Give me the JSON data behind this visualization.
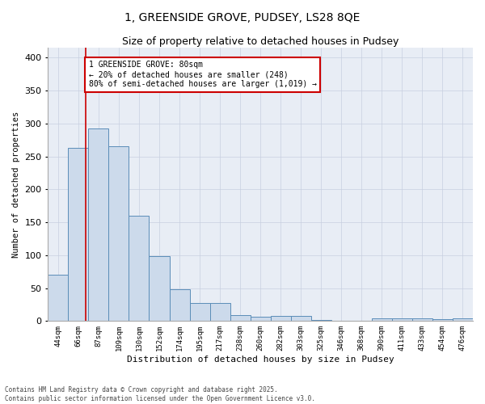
{
  "title1": "1, GREENSIDE GROVE, PUDSEY, LS28 8QE",
  "title2": "Size of property relative to detached houses in Pudsey",
  "xlabel": "Distribution of detached houses by size in Pudsey",
  "ylabel": "Number of detached properties",
  "bins": [
    "44sqm",
    "66sqm",
    "87sqm",
    "109sqm",
    "130sqm",
    "152sqm",
    "174sqm",
    "195sqm",
    "217sqm",
    "238sqm",
    "260sqm",
    "282sqm",
    "303sqm",
    "325sqm",
    "346sqm",
    "368sqm",
    "390sqm",
    "411sqm",
    "433sqm",
    "454sqm",
    "476sqm"
  ],
  "values": [
    70,
    263,
    293,
    265,
    160,
    99,
    48,
    27,
    27,
    9,
    6,
    8,
    8,
    2,
    0,
    0,
    4,
    4,
    4,
    3,
    4
  ],
  "bar_color": "#ccdaeb",
  "bar_edge_color": "#5b8db8",
  "grid_color": "#c8cfe0",
  "bg_color": "#e8edf5",
  "annotation_box_color": "#cc0000",
  "property_line_x": 1.36,
  "annotation_text": "1 GREENSIDE GROVE: 80sqm\n← 20% of detached houses are smaller (248)\n80% of semi-detached houses are larger (1,019) →",
  "footnote1": "Contains HM Land Registry data © Crown copyright and database right 2025.",
  "footnote2": "Contains public sector information licensed under the Open Government Licence v3.0.",
  "ylim": [
    0,
    415
  ],
  "yticks": [
    0,
    50,
    100,
    150,
    200,
    250,
    300,
    350,
    400
  ]
}
